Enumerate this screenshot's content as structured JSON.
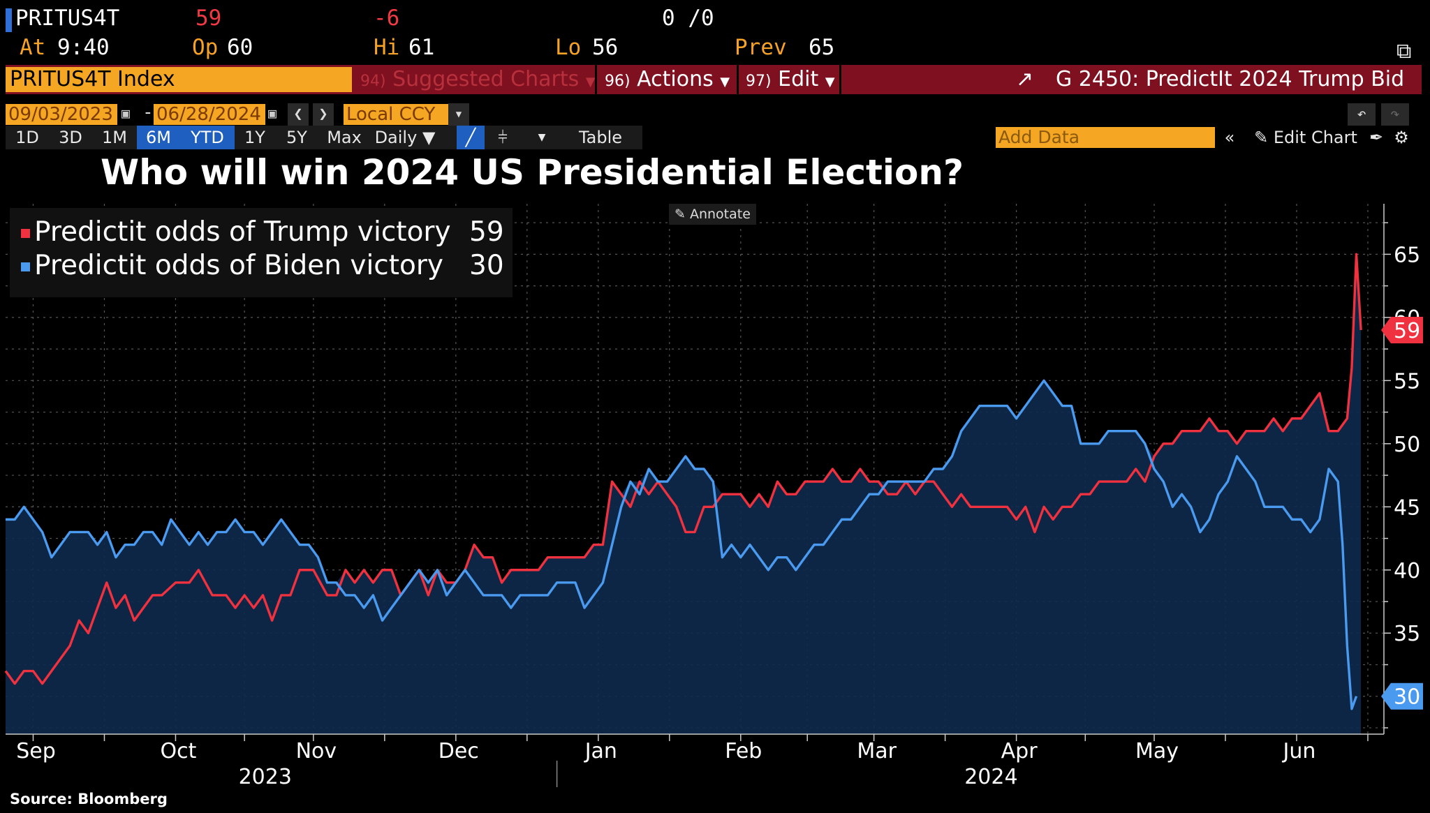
{
  "header": {
    "ticker": "PRITUS4T",
    "last": "59",
    "change": "-6",
    "bidask": "0 /0",
    "at_label": "At",
    "at_time": "9:40",
    "op_label": "Op",
    "op_value": "60",
    "hi_label": "Hi",
    "hi_value": "61",
    "lo_label": "Lo",
    "lo_value": "56",
    "prev_label": "Prev",
    "prev_value": "65"
  },
  "menubar": {
    "index_name": "PRITUS4T Index",
    "suggested_num": "94)",
    "suggested_label": "Suggested Charts",
    "actions_num": "96)",
    "actions_label": "Actions",
    "edit_num": "97)",
    "edit_label": "Edit",
    "chart_id": "G 2450: PredictIt 2024 Trump Bid"
  },
  "controls": {
    "start_date": "09/03/2023",
    "dash": "-",
    "end_date": "06/28/2024",
    "currency": "Local CCY",
    "periods": [
      "1D",
      "3D",
      "1M",
      "6M",
      "YTD",
      "1Y",
      "5Y",
      "Max"
    ],
    "frequency": "Daily",
    "table_label": "Table",
    "add_data_placeholder": "Add Data",
    "edit_chart": "Edit Chart"
  },
  "chart_data": {
    "type": "line",
    "title": "Who will win 2024 US Presidential Election?",
    "source": "Source: Bloomberg",
    "annotate_label": "Annotate",
    "x_tick_labels": [
      "Sep",
      "Oct",
      "Nov",
      "Dec",
      "Jan",
      "Feb",
      "Mar",
      "Apr",
      "May",
      "Jun"
    ],
    "year_labels": [
      "2023",
      "2024"
    ],
    "ylim": [
      27,
      69
    ],
    "y_ticks": [
      35,
      40,
      45,
      50,
      55,
      60,
      65
    ],
    "x_domain": [
      0,
      300
    ],
    "month_positions": [
      6,
      37,
      67,
      98,
      129,
      160,
      189,
      220,
      250,
      281
    ],
    "series": [
      {
        "name": "Predictit odds of Trump victory",
        "last_value": "59",
        "color": "#f0313f",
        "points": [
          [
            0,
            32
          ],
          [
            2,
            31
          ],
          [
            4,
            32
          ],
          [
            6,
            32
          ],
          [
            8,
            31
          ],
          [
            10,
            32
          ],
          [
            12,
            33
          ],
          [
            14,
            34
          ],
          [
            16,
            36
          ],
          [
            18,
            35
          ],
          [
            20,
            37
          ],
          [
            22,
            39
          ],
          [
            24,
            37
          ],
          [
            26,
            38
          ],
          [
            28,
            36
          ],
          [
            30,
            37
          ],
          [
            32,
            38
          ],
          [
            34,
            38
          ],
          [
            37,
            39
          ],
          [
            40,
            39
          ],
          [
            42,
            40
          ],
          [
            45,
            38
          ],
          [
            48,
            38
          ],
          [
            50,
            37
          ],
          [
            52,
            38
          ],
          [
            54,
            37
          ],
          [
            56,
            38
          ],
          [
            58,
            36
          ],
          [
            60,
            38
          ],
          [
            62,
            38
          ],
          [
            64,
            40
          ],
          [
            67,
            40
          ],
          [
            70,
            38
          ],
          [
            72,
            38
          ],
          [
            74,
            40
          ],
          [
            76,
            39
          ],
          [
            78,
            40
          ],
          [
            80,
            39
          ],
          [
            82,
            40
          ],
          [
            84,
            40
          ],
          [
            86,
            38
          ],
          [
            88,
            39
          ],
          [
            90,
            40
          ],
          [
            92,
            38
          ],
          [
            94,
            40
          ],
          [
            96,
            39
          ],
          [
            98,
            39
          ],
          [
            100,
            40
          ],
          [
            102,
            42
          ],
          [
            104,
            41
          ],
          [
            106,
            41
          ],
          [
            108,
            39
          ],
          [
            110,
            40
          ],
          [
            112,
            40
          ],
          [
            114,
            40
          ],
          [
            116,
            40
          ],
          [
            118,
            41
          ],
          [
            120,
            41
          ],
          [
            122,
            41
          ],
          [
            124,
            41
          ],
          [
            126,
            41
          ],
          [
            128,
            42
          ],
          [
            130,
            42
          ],
          [
            132,
            47
          ],
          [
            134,
            46
          ],
          [
            136,
            45
          ],
          [
            138,
            47
          ],
          [
            140,
            46
          ],
          [
            142,
            47
          ],
          [
            144,
            46
          ],
          [
            146,
            45
          ],
          [
            148,
            43
          ],
          [
            150,
            43
          ],
          [
            152,
            45
          ],
          [
            154,
            45
          ],
          [
            156,
            46
          ],
          [
            158,
            46
          ],
          [
            160,
            46
          ],
          [
            162,
            45
          ],
          [
            164,
            46
          ],
          [
            166,
            45
          ],
          [
            168,
            47
          ],
          [
            170,
            46
          ],
          [
            172,
            46
          ],
          [
            174,
            47
          ],
          [
            176,
            47
          ],
          [
            178,
            47
          ],
          [
            180,
            48
          ],
          [
            182,
            47
          ],
          [
            184,
            47
          ],
          [
            186,
            48
          ],
          [
            188,
            47
          ],
          [
            190,
            47
          ],
          [
            192,
            46
          ],
          [
            194,
            46
          ],
          [
            196,
            47
          ],
          [
            198,
            46
          ],
          [
            200,
            47
          ],
          [
            202,
            47
          ],
          [
            204,
            46
          ],
          [
            206,
            45
          ],
          [
            208,
            46
          ],
          [
            210,
            45
          ],
          [
            212,
            45
          ],
          [
            214,
            45
          ],
          [
            216,
            45
          ],
          [
            218,
            45
          ],
          [
            220,
            44
          ],
          [
            222,
            45
          ],
          [
            224,
            43
          ],
          [
            226,
            45
          ],
          [
            228,
            44
          ],
          [
            230,
            45
          ],
          [
            232,
            45
          ],
          [
            234,
            46
          ],
          [
            236,
            46
          ],
          [
            238,
            47
          ],
          [
            240,
            47
          ],
          [
            242,
            47
          ],
          [
            244,
            47
          ],
          [
            246,
            48
          ],
          [
            248,
            47
          ],
          [
            250,
            49
          ],
          [
            252,
            50
          ],
          [
            254,
            50
          ],
          [
            256,
            51
          ],
          [
            258,
            51
          ],
          [
            260,
            51
          ],
          [
            262,
            52
          ],
          [
            264,
            51
          ],
          [
            266,
            51
          ],
          [
            268,
            50
          ],
          [
            270,
            51
          ],
          [
            272,
            51
          ],
          [
            274,
            51
          ],
          [
            276,
            52
          ],
          [
            278,
            51
          ],
          [
            280,
            52
          ],
          [
            282,
            52
          ],
          [
            284,
            53
          ],
          [
            286,
            54
          ],
          [
            288,
            51
          ],
          [
            290,
            51
          ],
          [
            292,
            52
          ],
          [
            293,
            56
          ],
          [
            294,
            65
          ],
          [
            295,
            59
          ]
        ]
      },
      {
        "name": "Predictit odds of Biden victory",
        "last_value": "30",
        "color": "#4a9af0",
        "points": [
          [
            0,
            44
          ],
          [
            2,
            44
          ],
          [
            4,
            45
          ],
          [
            6,
            44
          ],
          [
            8,
            43
          ],
          [
            10,
            41
          ],
          [
            12,
            42
          ],
          [
            14,
            43
          ],
          [
            16,
            43
          ],
          [
            18,
            43
          ],
          [
            20,
            42
          ],
          [
            22,
            43
          ],
          [
            24,
            41
          ],
          [
            26,
            42
          ],
          [
            28,
            42
          ],
          [
            30,
            43
          ],
          [
            32,
            43
          ],
          [
            34,
            42
          ],
          [
            36,
            44
          ],
          [
            38,
            43
          ],
          [
            40,
            42
          ],
          [
            42,
            43
          ],
          [
            44,
            42
          ],
          [
            46,
            43
          ],
          [
            48,
            43
          ],
          [
            50,
            44
          ],
          [
            52,
            43
          ],
          [
            54,
            43
          ],
          [
            56,
            42
          ],
          [
            58,
            43
          ],
          [
            60,
            44
          ],
          [
            62,
            43
          ],
          [
            64,
            42
          ],
          [
            66,
            42
          ],
          [
            68,
            41
          ],
          [
            70,
            39
          ],
          [
            72,
            39
          ],
          [
            74,
            38
          ],
          [
            76,
            38
          ],
          [
            78,
            37
          ],
          [
            80,
            38
          ],
          [
            82,
            36
          ],
          [
            84,
            37
          ],
          [
            86,
            38
          ],
          [
            88,
            39
          ],
          [
            90,
            40
          ],
          [
            92,
            39
          ],
          [
            94,
            40
          ],
          [
            96,
            38
          ],
          [
            98,
            39
          ],
          [
            100,
            40
          ],
          [
            102,
            39
          ],
          [
            104,
            38
          ],
          [
            106,
            38
          ],
          [
            108,
            38
          ],
          [
            110,
            37
          ],
          [
            112,
            38
          ],
          [
            114,
            38
          ],
          [
            116,
            38
          ],
          [
            118,
            38
          ],
          [
            120,
            39
          ],
          [
            122,
            39
          ],
          [
            124,
            39
          ],
          [
            126,
            37
          ],
          [
            128,
            38
          ],
          [
            130,
            39
          ],
          [
            132,
            42
          ],
          [
            134,
            45
          ],
          [
            136,
            47
          ],
          [
            138,
            46
          ],
          [
            140,
            48
          ],
          [
            142,
            47
          ],
          [
            144,
            47
          ],
          [
            146,
            48
          ],
          [
            148,
            49
          ],
          [
            150,
            48
          ],
          [
            152,
            48
          ],
          [
            154,
            47
          ],
          [
            156,
            41
          ],
          [
            158,
            42
          ],
          [
            160,
            41
          ],
          [
            162,
            42
          ],
          [
            164,
            41
          ],
          [
            166,
            40
          ],
          [
            168,
            41
          ],
          [
            170,
            41
          ],
          [
            172,
            40
          ],
          [
            174,
            41
          ],
          [
            176,
            42
          ],
          [
            178,
            42
          ],
          [
            180,
            43
          ],
          [
            182,
            44
          ],
          [
            184,
            44
          ],
          [
            186,
            45
          ],
          [
            188,
            46
          ],
          [
            190,
            46
          ],
          [
            192,
            47
          ],
          [
            194,
            47
          ],
          [
            196,
            47
          ],
          [
            198,
            47
          ],
          [
            200,
            47
          ],
          [
            202,
            48
          ],
          [
            204,
            48
          ],
          [
            206,
            49
          ],
          [
            208,
            51
          ],
          [
            210,
            52
          ],
          [
            212,
            53
          ],
          [
            214,
            53
          ],
          [
            216,
            53
          ],
          [
            218,
            53
          ],
          [
            220,
            52
          ],
          [
            222,
            53
          ],
          [
            224,
            54
          ],
          [
            226,
            55
          ],
          [
            228,
            54
          ],
          [
            230,
            53
          ],
          [
            232,
            53
          ],
          [
            234,
            50
          ],
          [
            236,
            50
          ],
          [
            238,
            50
          ],
          [
            240,
            51
          ],
          [
            242,
            51
          ],
          [
            244,
            51
          ],
          [
            246,
            51
          ],
          [
            248,
            50
          ],
          [
            250,
            48
          ],
          [
            252,
            47
          ],
          [
            254,
            45
          ],
          [
            256,
            46
          ],
          [
            258,
            45
          ],
          [
            260,
            43
          ],
          [
            262,
            44
          ],
          [
            264,
            46
          ],
          [
            266,
            47
          ],
          [
            268,
            49
          ],
          [
            270,
            48
          ],
          [
            272,
            47
          ],
          [
            274,
            45
          ],
          [
            276,
            45
          ],
          [
            278,
            45
          ],
          [
            280,
            44
          ],
          [
            282,
            44
          ],
          [
            284,
            43
          ],
          [
            286,
            44
          ],
          [
            288,
            48
          ],
          [
            290,
            47
          ],
          [
            291,
            42
          ],
          [
            292,
            34
          ],
          [
            293,
            29
          ],
          [
            294,
            30
          ]
        ]
      }
    ]
  }
}
